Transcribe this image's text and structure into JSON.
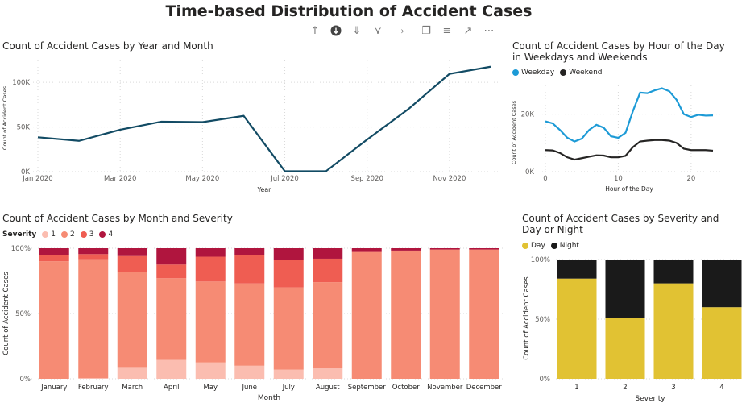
{
  "page": {
    "title": "Time-based Distribution of Accident Cases"
  },
  "toolbar": {
    "icons": [
      "arrow-up-icon",
      "drill-down-icon",
      "expand-all-icon",
      "hierarchy-icon",
      "pin-icon",
      "copy-icon",
      "filter-icon",
      "focus-mode-icon",
      "more-options-icon"
    ]
  },
  "colors": {
    "line_dark": "#124b64",
    "weekday": "#1c9ad6",
    "weekend": "#252423",
    "sev1": "#fbbdb0",
    "sev2": "#f68b74",
    "sev3": "#ef5d52",
    "sev4": "#b0153e",
    "day": "#e1c233",
    "night": "#1a1a1a",
    "grid": "#d9d9d9"
  },
  "chart_data": [
    {
      "type": "line",
      "title": "Count of Accident Cases by Year and Month",
      "xlabel": "Year",
      "ylabel": "Count of Accident Cases",
      "x": [
        "Jan 2020",
        "Feb 2020",
        "Mar 2020",
        "Apr 2020",
        "May 2020",
        "Jun 2020",
        "Jul 2020",
        "Aug 2020",
        "Sep 2020",
        "Oct 2020",
        "Nov 2020",
        "Dec 2020"
      ],
      "xticks": [
        "Jan 2020",
        "Mar 2020",
        "May 2020",
        "Jul 2020",
        "Sep 2020",
        "Nov 2020"
      ],
      "yticks": [
        0,
        50000,
        100000
      ],
      "ytick_labels": [
        "0K",
        "50K",
        "100K"
      ],
      "ylim": [
        0,
        120000
      ],
      "series": [
        {
          "values": [
            38500,
            34500,
            47000,
            56000,
            55500,
            62500,
            500,
            500,
            36000,
            70000,
            109500,
            117500
          ]
        }
      ],
      "grid": true
    },
    {
      "type": "line",
      "title": "Count of Accident Cases by Hour of the Day in Weekdays and Weekends",
      "xlabel": "Hour of the Day",
      "ylabel": "Count of Accident Cases",
      "x": [
        0,
        1,
        2,
        3,
        4,
        5,
        6,
        7,
        8,
        9,
        10,
        11,
        12,
        13,
        14,
        15,
        16,
        17,
        18,
        19,
        20,
        21,
        22,
        23
      ],
      "xticks": [
        0,
        10,
        20
      ],
      "yticks": [
        0,
        20000
      ],
      "ytick_labels": [
        "0K",
        "20K"
      ],
      "ylim": [
        0,
        30000
      ],
      "legend_position": "top-left",
      "series": [
        {
          "name": "Weekday",
          "values": [
            17500,
            16800,
            14500,
            11800,
            10500,
            11500,
            14500,
            16300,
            15300,
            12300,
            11800,
            13500,
            21000,
            27500,
            27300,
            28300,
            29000,
            28000,
            25000,
            20000,
            19000,
            19800,
            19500,
            19600
          ]
        },
        {
          "name": "Weekend",
          "values": [
            7500,
            7400,
            6500,
            5000,
            4200,
            4700,
            5200,
            5700,
            5600,
            5000,
            5000,
            5500,
            8500,
            10500,
            10800,
            11000,
            11000,
            10800,
            10000,
            8000,
            7500,
            7500,
            7500,
            7300
          ]
        }
      ],
      "grid": true
    },
    {
      "type": "bar",
      "stacked": "percent",
      "title": "Count of Accident Cases by Month and Severity",
      "xlabel": "Month",
      "ylabel": "Count of Accident Cases",
      "legend_title": "Severity",
      "legend_position": "top-left",
      "categories": [
        "January",
        "February",
        "March",
        "April",
        "May",
        "June",
        "July",
        "August",
        "September",
        "October",
        "November",
        "December"
      ],
      "yticks": [
        0,
        50,
        100
      ],
      "ytick_labels": [
        "0%",
        "50%",
        "100%"
      ],
      "series": [
        {
          "name": "1",
          "values": [
            0,
            0.5,
            9,
            14.5,
            12.5,
            10,
            7,
            8,
            0,
            0,
            0,
            0
          ]
        },
        {
          "name": "2",
          "values": [
            90,
            91,
            73,
            62.5,
            62,
            63,
            63,
            66,
            97,
            98,
            99,
            99
          ]
        },
        {
          "name": "3",
          "values": [
            5,
            4,
            12,
            10.5,
            19,
            21.5,
            21,
            18,
            0.2,
            0.2,
            0,
            0
          ]
        },
        {
          "name": "4",
          "values": [
            5,
            4.5,
            6,
            12.5,
            6.5,
            5.5,
            9,
            8,
            2.8,
            1.8,
            1,
            1
          ]
        }
      ]
    },
    {
      "type": "bar",
      "stacked": "percent",
      "title": "Count of Accident Cases by Severity and Day or Night",
      "xlabel": "Severity",
      "ylabel": "Count of Accident Cases",
      "legend_position": "top-left",
      "categories": [
        "1",
        "2",
        "3",
        "4"
      ],
      "yticks": [
        0,
        50,
        100
      ],
      "ytick_labels": [
        "0%",
        "50%",
        "100%"
      ],
      "series": [
        {
          "name": "Day",
          "values": [
            84,
            51,
            80,
            60
          ]
        },
        {
          "name": "Night",
          "values": [
            16,
            49,
            20,
            40
          ]
        }
      ]
    }
  ]
}
